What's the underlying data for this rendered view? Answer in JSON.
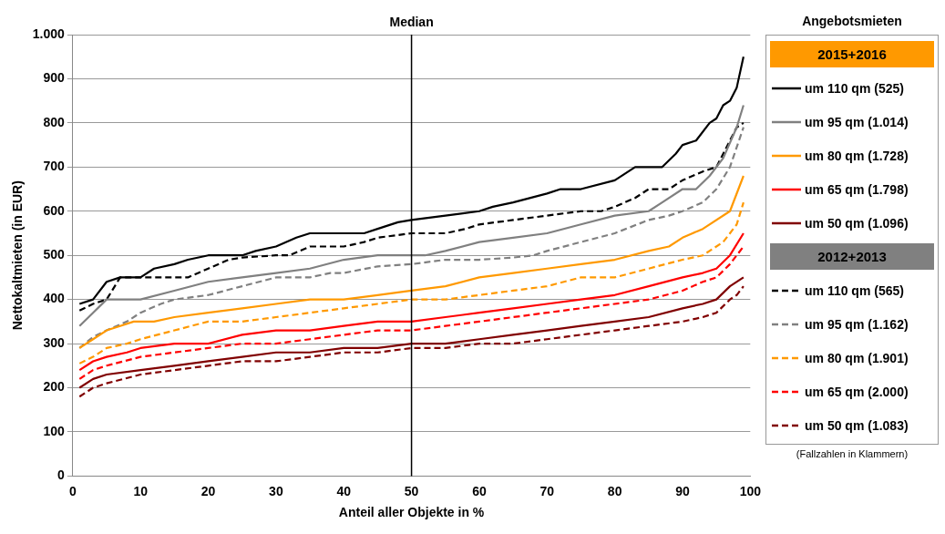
{
  "chart_data": {
    "type": "line",
    "xlabel": "Anteil aller Objekte in %",
    "ylabel": "Nettokaltmieten (in EUR)",
    "legend_title": "Angebotsmieten",
    "legend": "right",
    "grid": "y",
    "xlim": [
      0,
      100
    ],
    "xticks": [
      0,
      10,
      20,
      30,
      40,
      50,
      60,
      70,
      80,
      90,
      100
    ],
    "ylim": [
      0,
      1000
    ],
    "yticks": [
      0,
      100,
      200,
      300,
      400,
      500,
      600,
      700,
      800,
      900,
      {
        "value": 1000,
        "label": "1.000"
      }
    ],
    "annotations": [
      "2015+2016",
      "2012+2013",
      "(Fallzahlen in Klammern)"
    ],
    "ref_lines": [
      {
        "axis": "x",
        "value": 50,
        "label": "Median",
        "color": "#000000"
      }
    ],
    "series": [
      {
        "name": "um 110 qm (525)",
        "color": "#000000",
        "line_style": "solid",
        "x": [
          1,
          3,
          5,
          7,
          10,
          12,
          15,
          17,
          20,
          25,
          27,
          30,
          33,
          35,
          40,
          43,
          45,
          48,
          50,
          55,
          60,
          62,
          65,
          70,
          72,
          75,
          80,
          83,
          85,
          87,
          89,
          90,
          92,
          94,
          95,
          96,
          97,
          98,
          99
        ],
        "values": [
          390,
          400,
          440,
          450,
          450,
          470,
          480,
          490,
          500,
          500,
          510,
          520,
          540,
          550,
          550,
          550,
          560,
          575,
          580,
          590,
          600,
          610,
          620,
          640,
          650,
          650,
          670,
          700,
          700,
          700,
          730,
          750,
          760,
          800,
          810,
          840,
          850,
          880,
          950
        ]
      },
      {
        "name": "um 95 qm (1.014)",
        "color": "#808080",
        "line_style": "solid",
        "x": [
          1,
          3,
          5,
          10,
          15,
          20,
          25,
          30,
          35,
          40,
          45,
          50,
          52,
          55,
          60,
          65,
          70,
          75,
          80,
          85,
          87,
          90,
          92,
          94,
          96,
          98,
          99
        ],
        "values": [
          340,
          370,
          400,
          400,
          420,
          440,
          450,
          460,
          470,
          490,
          500,
          500,
          500,
          510,
          530,
          540,
          550,
          570,
          590,
          600,
          620,
          650,
          650,
          680,
          720,
          790,
          840
        ]
      },
      {
        "name": "um 80 qm (1.728)",
        "color": "#ff9900",
        "line_style": "solid",
        "x": [
          1,
          3,
          5,
          7,
          9,
          12,
          15,
          20,
          25,
          30,
          35,
          40,
          45,
          50,
          55,
          60,
          65,
          70,
          75,
          80,
          85,
          88,
          90,
          93,
          97,
          99
        ],
        "values": [
          290,
          310,
          330,
          340,
          350,
          350,
          360,
          370,
          380,
          390,
          400,
          400,
          410,
          420,
          430,
          450,
          460,
          470,
          480,
          490,
          510,
          520,
          540,
          560,
          600,
          680
        ]
      },
      {
        "name": "um 65 qm (1.798)",
        "color": "#ff0000",
        "line_style": "solid",
        "x": [
          1,
          3,
          5,
          8,
          10,
          15,
          20,
          25,
          30,
          35,
          40,
          45,
          50,
          55,
          60,
          65,
          70,
          75,
          80,
          85,
          90,
          93,
          95,
          97,
          99
        ],
        "values": [
          240,
          260,
          270,
          280,
          290,
          300,
          300,
          320,
          330,
          330,
          340,
          350,
          350,
          360,
          370,
          380,
          390,
          400,
          410,
          430,
          450,
          460,
          470,
          500,
          550
        ]
      },
      {
        "name": "um 50 qm (1.096)",
        "color": "#800000",
        "line_style": "solid",
        "x": [
          1,
          3,
          5,
          10,
          15,
          20,
          25,
          30,
          35,
          40,
          45,
          50,
          55,
          60,
          65,
          70,
          75,
          80,
          85,
          90,
          93,
          95,
          97,
          99
        ],
        "values": [
          200,
          220,
          230,
          240,
          250,
          260,
          270,
          280,
          280,
          290,
          290,
          300,
          300,
          310,
          320,
          330,
          340,
          350,
          360,
          380,
          390,
          400,
          430,
          450
        ]
      },
      {
        "name": "um 110 qm (565)",
        "color": "#000000",
        "line_style": "dashed",
        "x": [
          1,
          3,
          5,
          7,
          10,
          15,
          17,
          20,
          23,
          25,
          30,
          32,
          35,
          40,
          43,
          45,
          50,
          55,
          58,
          60,
          65,
          70,
          75,
          78,
          80,
          83,
          85,
          88,
          90,
          93,
          95,
          97,
          98,
          99
        ],
        "values": [
          375,
          390,
          400,
          450,
          450,
          450,
          450,
          470,
          490,
          495,
          500,
          500,
          520,
          520,
          530,
          540,
          550,
          550,
          560,
          570,
          580,
          590,
          600,
          600,
          610,
          630,
          650,
          650,
          670,
          690,
          700,
          760,
          790,
          800
        ]
      },
      {
        "name": "um 95 qm (1.162)",
        "color": "#808080",
        "line_style": "dashed",
        "x": [
          1,
          3,
          5,
          8,
          10,
          13,
          15,
          20,
          25,
          30,
          35,
          38,
          40,
          45,
          50,
          55,
          60,
          65,
          68,
          70,
          75,
          80,
          85,
          88,
          90,
          93,
          95,
          97,
          99
        ],
        "values": [
          290,
          315,
          330,
          350,
          370,
          390,
          400,
          410,
          430,
          450,
          450,
          460,
          460,
          475,
          480,
          490,
          490,
          495,
          500,
          510,
          530,
          550,
          580,
          590,
          600,
          620,
          650,
          700,
          790
        ]
      },
      {
        "name": "um 80 qm (1.901)",
        "color": "#ff9900",
        "line_style": "dashed",
        "x": [
          1,
          3,
          5,
          8,
          10,
          15,
          20,
          25,
          30,
          35,
          40,
          45,
          50,
          55,
          60,
          65,
          70,
          75,
          80,
          85,
          90,
          93,
          96,
          98,
          99
        ],
        "values": [
          255,
          270,
          290,
          300,
          310,
          330,
          350,
          350,
          360,
          370,
          380,
          390,
          400,
          400,
          410,
          420,
          430,
          450,
          450,
          470,
          490,
          500,
          530,
          570,
          620
        ]
      },
      {
        "name": "um 65 qm (2.000)",
        "color": "#ff0000",
        "line_style": "dashed",
        "x": [
          1,
          3,
          5,
          10,
          15,
          20,
          25,
          30,
          35,
          40,
          45,
          50,
          55,
          60,
          65,
          70,
          75,
          80,
          85,
          90,
          93,
          95,
          97,
          99
        ],
        "values": [
          220,
          240,
          250,
          270,
          280,
          290,
          300,
          300,
          310,
          320,
          330,
          330,
          340,
          350,
          360,
          370,
          380,
          390,
          400,
          420,
          440,
          450,
          480,
          520
        ]
      },
      {
        "name": "um 50 qm (1.083)",
        "color": "#800000",
        "line_style": "dashed",
        "x": [
          1,
          3,
          5,
          10,
          15,
          20,
          25,
          30,
          35,
          40,
          45,
          50,
          55,
          60,
          65,
          70,
          75,
          80,
          85,
          90,
          93,
          95,
          97,
          98,
          99
        ],
        "values": [
          180,
          200,
          210,
          230,
          240,
          250,
          260,
          260,
          270,
          280,
          280,
          290,
          290,
          300,
          300,
          310,
          320,
          330,
          340,
          350,
          360,
          370,
          400,
          410,
          430
        ]
      }
    ]
  }
}
